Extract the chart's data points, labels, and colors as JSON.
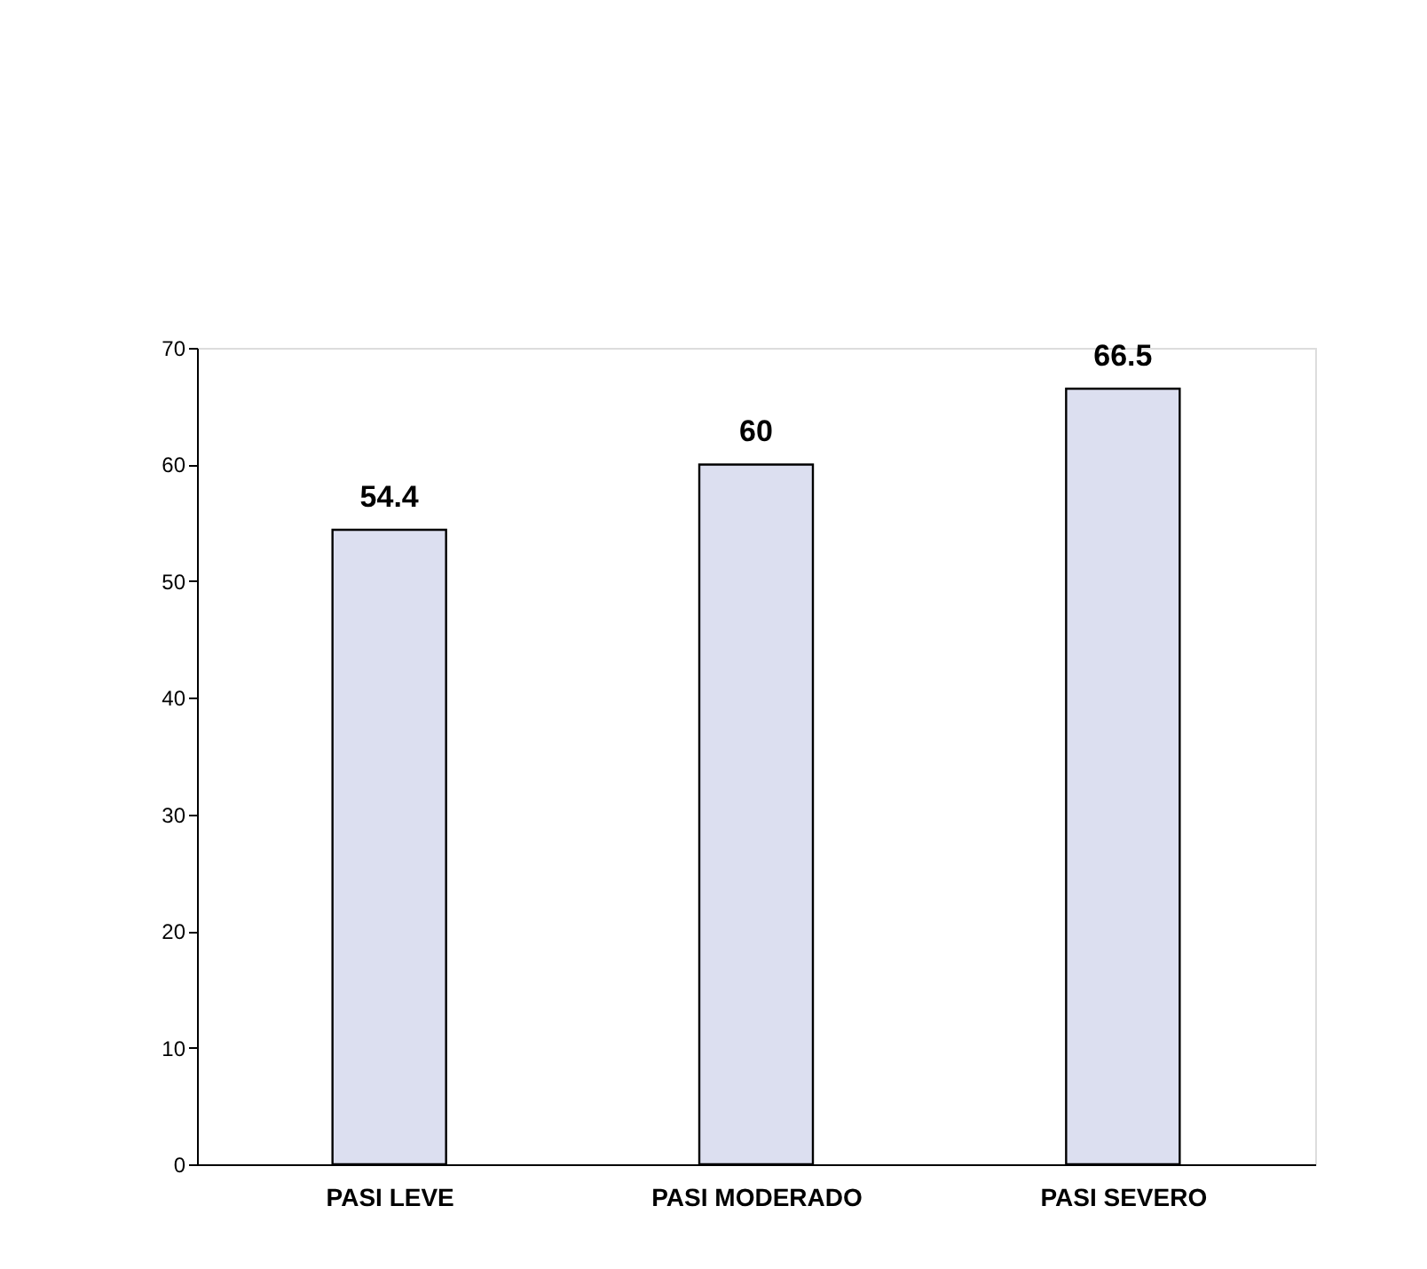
{
  "chart_data": {
    "type": "bar",
    "categories": [
      "PASI LEVE",
      "PASI MODERADO",
      "PASI SEVERO"
    ],
    "values": [
      54.4,
      60,
      66.5
    ],
    "color": "#dcdff0",
    "ylim": [
      0,
      70
    ],
    "yticks": [
      0,
      10,
      20,
      30,
      40,
      50,
      60,
      70
    ],
    "data_labels": true,
    "grid": false
  }
}
